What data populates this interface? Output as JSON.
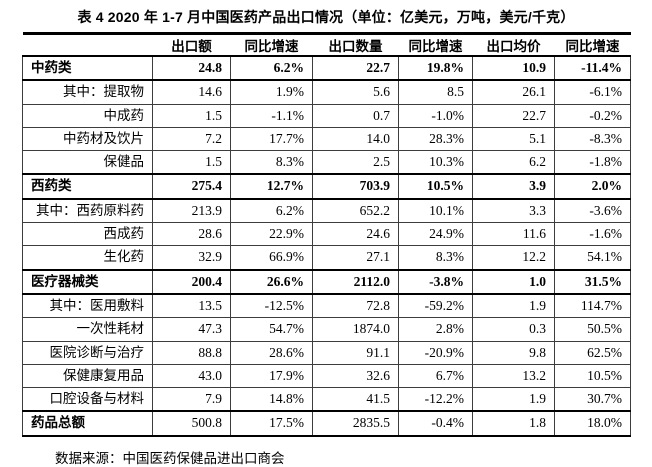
{
  "title": "表 4  2020 年 1-7 月中国医药产品出口情况（单位：亿美元，万吨，美元/千克）",
  "table": {
    "columns": [
      "",
      "出口额",
      "同比增速",
      "出口数量",
      "同比增速",
      "出口均价",
      "同比增速"
    ],
    "rows": [
      {
        "label": "中药类",
        "style": "cat",
        "values": [
          "24.8",
          "6.2%",
          "22.7",
          "19.8%",
          "10.9",
          "-11.4%"
        ]
      },
      {
        "label": "其中：提取物",
        "style": "sub",
        "values": [
          "14.6",
          "1.9%",
          "5.6",
          "8.5",
          "26.1",
          "-6.1%"
        ]
      },
      {
        "label": "中成药",
        "style": "sub",
        "values": [
          "1.5",
          "-1.1%",
          "0.7",
          "-1.0%",
          "22.7",
          "-0.2%"
        ]
      },
      {
        "label": "中药材及饮片",
        "style": "sub",
        "values": [
          "7.2",
          "17.7%",
          "14.0",
          "28.3%",
          "5.1",
          "-8.3%"
        ]
      },
      {
        "label": "保健品",
        "style": "sub",
        "values": [
          "1.5",
          "8.3%",
          "2.5",
          "10.3%",
          "6.2",
          "-1.8%"
        ]
      },
      {
        "label": "西药类",
        "style": "cat",
        "values": [
          "275.4",
          "12.7%",
          "703.9",
          "10.5%",
          "3.9",
          "2.0%"
        ]
      },
      {
        "label": "其中：西药原料药",
        "style": "sub",
        "values": [
          "213.9",
          "6.2%",
          "652.2",
          "10.1%",
          "3.3",
          "-3.6%"
        ]
      },
      {
        "label": "西成药",
        "style": "sub",
        "values": [
          "28.6",
          "22.9%",
          "24.6",
          "24.9%",
          "11.6",
          "-1.6%"
        ]
      },
      {
        "label": "生化药",
        "style": "sub",
        "values": [
          "32.9",
          "66.9%",
          "27.1",
          "8.3%",
          "12.2",
          "54.1%"
        ]
      },
      {
        "label": "医疗器械类",
        "style": "cat",
        "values": [
          "200.4",
          "26.6%",
          "2112.0",
          "-3.8%",
          "1.0",
          "31.5%"
        ]
      },
      {
        "label": "其中：医用敷料",
        "style": "sub",
        "values": [
          "13.5",
          "-12.5%",
          "72.8",
          "-59.2%",
          "1.9",
          "114.7%"
        ]
      },
      {
        "label": "一次性耗材",
        "style": "sub",
        "values": [
          "47.3",
          "54.7%",
          "1874.0",
          "2.8%",
          "0.3",
          "50.5%"
        ]
      },
      {
        "label": "医院诊断与治疗",
        "style": "sub",
        "values": [
          "88.8",
          "28.6%",
          "91.1",
          "-20.9%",
          "9.8",
          "62.5%"
        ]
      },
      {
        "label": "保健康复用品",
        "style": "sub",
        "values": [
          "43.0",
          "17.9%",
          "32.6",
          "6.7%",
          "13.2",
          "10.5%"
        ]
      },
      {
        "label": "口腔设备与材料",
        "style": "sub",
        "values": [
          "7.9",
          "14.8%",
          "41.5",
          "-12.2%",
          "1.9",
          "30.7%"
        ]
      },
      {
        "label": "药品总额",
        "style": "total",
        "values": [
          "500.8",
          "17.5%",
          "2835.5",
          "-0.4%",
          "1.8",
          "18.0%"
        ]
      }
    ]
  },
  "footer": {
    "source": "数据来源：中国医药保健品进出口商会"
  }
}
